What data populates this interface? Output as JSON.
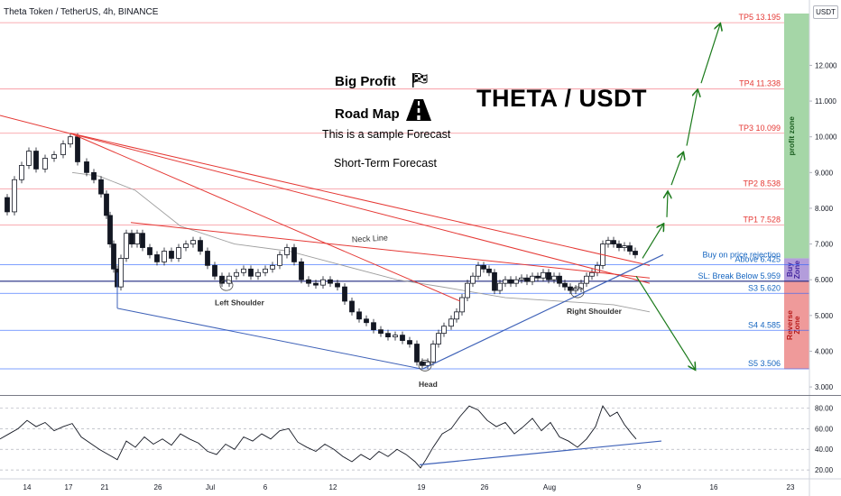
{
  "header": {
    "pair_title": "Theta Token / TetherUS, 4h, BINANCE",
    "quote_badge": "USDT"
  },
  "annotations": {
    "big_profit": "Big Profit",
    "road_map": "Road Map",
    "sample_forecast": "This is a sample Forecast",
    "short_term": "Short-Term Forecast",
    "main_title": "THETA / USDT",
    "neck_line": "Neck Line",
    "left_shoulder": "Left Shoulder",
    "head": "Head",
    "right_shoulder": "Right Shoulder"
  },
  "zones": {
    "profit": "profit zone",
    "buy": "Buy Zone",
    "reverse": "Reverse Zone"
  },
  "colors": {
    "tp_line": "#f23645",
    "support_line": "#2962ff",
    "profit_zone": "#a5d6a7",
    "buy_zone": "#b39ddb",
    "reverse_zone": "#ef9a9a",
    "arrow": "#1b7a1b",
    "trendline": "#e53935",
    "pattern_line": "#3f62b8"
  },
  "chart_data": {
    "type": "line",
    "x_axis_ticks": [
      "14",
      "17",
      "21",
      "26",
      "Jul",
      "6",
      "12",
      "19",
      "26",
      "Aug",
      "9",
      "16",
      "23"
    ],
    "price_axis_ticks": [
      3.0,
      4.0,
      5.0,
      6.0,
      7.0,
      8.0,
      9.0,
      10.0,
      11.0,
      12.0
    ],
    "price_axis_labels": [
      "3.000",
      "4.000",
      "5.000",
      "6.000",
      "7.000",
      "8.000",
      "9.000",
      "10.000",
      "11.000",
      "12.000"
    ],
    "price_range": [
      2.8,
      13.45
    ],
    "levels": [
      {
        "label": "TP5 13.195",
        "value": 13.195,
        "kind": "tp"
      },
      {
        "label": "TP4 11.338",
        "value": 11.338,
        "kind": "tp"
      },
      {
        "label": "TP3 10.099",
        "value": 10.099,
        "kind": "tp"
      },
      {
        "label": "TP2 8.538",
        "value": 8.538,
        "kind": "tp"
      },
      {
        "label": "TP1 7.528",
        "value": 7.528,
        "kind": "tp"
      },
      {
        "label": "Buy on price rejection",
        "value": 6.6,
        "kind": "note"
      },
      {
        "label": "Above 6.425",
        "value": 6.425,
        "kind": "buy"
      },
      {
        "label": "SL: Break Below 5.959",
        "value": 5.959,
        "kind": "sl"
      },
      {
        "label": "S3 5.620",
        "value": 5.62,
        "kind": "support"
      },
      {
        "label": "S4 4.585",
        "value": 4.585,
        "kind": "support"
      },
      {
        "label": "S5 3.506",
        "value": 3.506,
        "kind": "support"
      }
    ],
    "price_series": [
      [
        0,
        8.3
      ],
      [
        8,
        7.9
      ],
      [
        16,
        8.8
      ],
      [
        24,
        9.2
      ],
      [
        32,
        9.6
      ],
      [
        40,
        9.1
      ],
      [
        50,
        9.4
      ],
      [
        60,
        9.5
      ],
      [
        70,
        9.8
      ],
      [
        78,
        10.0
      ],
      [
        86,
        9.3
      ],
      [
        96,
        9.0
      ],
      [
        104,
        8.8
      ],
      [
        112,
        8.4
      ],
      [
        118,
        7.8
      ],
      [
        122,
        7.0
      ],
      [
        126,
        6.3
      ],
      [
        130,
        5.8
      ],
      [
        134,
        6.6
      ],
      [
        140,
        7.3
      ],
      [
        146,
        7.0
      ],
      [
        152,
        7.3
      ],
      [
        158,
        6.9
      ],
      [
        166,
        6.7
      ],
      [
        174,
        6.5
      ],
      [
        182,
        6.8
      ],
      [
        190,
        6.6
      ],
      [
        198,
        6.9
      ],
      [
        206,
        7.0
      ],
      [
        214,
        7.1
      ],
      [
        222,
        6.8
      ],
      [
        230,
        6.4
      ],
      [
        238,
        6.1
      ],
      [
        246,
        5.9
      ],
      [
        254,
        6.1
      ],
      [
        262,
        6.2
      ],
      [
        270,
        6.3
      ],
      [
        278,
        6.1
      ],
      [
        286,
        6.2
      ],
      [
        294,
        6.3
      ],
      [
        302,
        6.4
      ],
      [
        310,
        6.7
      ],
      [
        318,
        6.9
      ],
      [
        326,
        6.5
      ],
      [
        334,
        6.0
      ],
      [
        342,
        5.9
      ],
      [
        350,
        5.85
      ],
      [
        358,
        6.0
      ],
      [
        366,
        5.9
      ],
      [
        374,
        5.8
      ],
      [
        382,
        5.4
      ],
      [
        390,
        5.1
      ],
      [
        398,
        4.9
      ],
      [
        406,
        4.8
      ],
      [
        414,
        4.6
      ],
      [
        422,
        4.5
      ],
      [
        430,
        4.4
      ],
      [
        438,
        4.45
      ],
      [
        446,
        4.3
      ],
      [
        454,
        4.2
      ],
      [
        462,
        3.7
      ],
      [
        468,
        3.6
      ],
      [
        474,
        3.7
      ],
      [
        480,
        4.2
      ],
      [
        486,
        4.5
      ],
      [
        492,
        4.7
      ],
      [
        500,
        4.9
      ],
      [
        506,
        5.1
      ],
      [
        512,
        5.5
      ],
      [
        518,
        5.9
      ],
      [
        524,
        6.1
      ],
      [
        530,
        6.4
      ],
      [
        536,
        6.3
      ],
      [
        542,
        6.2
      ],
      [
        548,
        5.7
      ],
      [
        554,
        5.9
      ],
      [
        560,
        6.0
      ],
      [
        566,
        5.9
      ],
      [
        572,
        6.0
      ],
      [
        578,
        6.05
      ],
      [
        584,
        5.95
      ],
      [
        590,
        6.1
      ],
      [
        596,
        6.05
      ],
      [
        602,
        6.2
      ],
      [
        608,
        6.0
      ],
      [
        614,
        6.1
      ],
      [
        620,
        5.9
      ],
      [
        626,
        5.8
      ],
      [
        632,
        5.7
      ],
      [
        638,
        5.75
      ],
      [
        644,
        5.9
      ],
      [
        650,
        6.1
      ],
      [
        656,
        6.2
      ],
      [
        662,
        6.4
      ],
      [
        668,
        7.0
      ],
      [
        674,
        7.1
      ],
      [
        680,
        7.0
      ],
      [
        686,
        6.9
      ],
      [
        692,
        6.95
      ],
      [
        698,
        6.8
      ],
      [
        704,
        6.7
      ]
    ],
    "moving_average": [
      [
        80,
        9.0
      ],
      [
        110,
        8.9
      ],
      [
        150,
        8.5
      ],
      [
        200,
        7.5
      ],
      [
        260,
        7.0
      ],
      [
        320,
        6.8
      ],
      [
        380,
        6.4
      ],
      [
        440,
        6.0
      ],
      [
        490,
        5.8
      ],
      [
        560,
        5.5
      ],
      [
        620,
        5.4
      ],
      [
        680,
        5.3
      ],
      [
        720,
        5.1
      ]
    ],
    "pattern": {
      "neck_line": [
        [
          145,
          7.6
        ],
        [
          720,
          6.05
        ]
      ],
      "upper_trend_1": [
        [
          0,
          10.6
        ],
        [
          720,
          5.9
        ]
      ],
      "upper_trend_2": [
        [
          78,
          10.1
        ],
        [
          510,
          5.4
        ]
      ],
      "upper_trend_3": [
        [
          78,
          10.1
        ],
        [
          720,
          6.4
        ]
      ],
      "lower_trend": [
        [
          130,
          5.2
        ],
        [
          468,
          3.5
        ]
      ],
      "uptrend": [
        [
          468,
          3.5
        ],
        [
          735,
          6.7
        ]
      ]
    },
    "forecast_path": [
      [
        712,
        6.6
      ],
      [
        735,
        7.6
      ],
      [
        740,
        8.5
      ],
      [
        757,
        9.6
      ],
      [
        773,
        11.35
      ],
      [
        798,
        13.2
      ]
    ],
    "bearish_path": [
      [
        705,
        6.1
      ],
      [
        770,
        3.5
      ]
    ],
    "rsi": {
      "ticks": [
        20.0,
        40.0,
        60.0,
        80.0
      ],
      "tick_labels": [
        "20.00",
        "40.00",
        "60.00",
        "80.00"
      ],
      "range": [
        14,
        90
      ],
      "trend_line": [
        [
          465,
          25
        ],
        [
          733,
          48
        ]
      ],
      "series": [
        [
          0,
          50
        ],
        [
          10,
          55
        ],
        [
          20,
          60
        ],
        [
          30,
          68
        ],
        [
          40,
          62
        ],
        [
          50,
          66
        ],
        [
          60,
          58
        ],
        [
          70,
          62
        ],
        [
          80,
          65
        ],
        [
          90,
          52
        ],
        [
          100,
          46
        ],
        [
          110,
          40
        ],
        [
          120,
          35
        ],
        [
          130,
          30
        ],
        [
          140,
          48
        ],
        [
          150,
          42
        ],
        [
          160,
          52
        ],
        [
          170,
          45
        ],
        [
          180,
          50
        ],
        [
          190,
          44
        ],
        [
          200,
          55
        ],
        [
          210,
          50
        ],
        [
          220,
          46
        ],
        [
          230,
          38
        ],
        [
          240,
          35
        ],
        [
          250,
          45
        ],
        [
          260,
          40
        ],
        [
          270,
          52
        ],
        [
          280,
          48
        ],
        [
          290,
          55
        ],
        [
          300,
          50
        ],
        [
          310,
          58
        ],
        [
          320,
          60
        ],
        [
          330,
          47
        ],
        [
          340,
          42
        ],
        [
          350,
          38
        ],
        [
          360,
          45
        ],
        [
          370,
          40
        ],
        [
          380,
          33
        ],
        [
          390,
          28
        ],
        [
          400,
          35
        ],
        [
          410,
          30
        ],
        [
          420,
          38
        ],
        [
          430,
          33
        ],
        [
          440,
          40
        ],
        [
          450,
          35
        ],
        [
          460,
          28
        ],
        [
          466,
          22
        ],
        [
          472,
          30
        ],
        [
          480,
          42
        ],
        [
          490,
          55
        ],
        [
          500,
          60
        ],
        [
          510,
          72
        ],
        [
          520,
          82
        ],
        [
          530,
          78
        ],
        [
          540,
          68
        ],
        [
          550,
          62
        ],
        [
          560,
          66
        ],
        [
          570,
          55
        ],
        [
          580,
          62
        ],
        [
          590,
          70
        ],
        [
          600,
          58
        ],
        [
          610,
          66
        ],
        [
          620,
          52
        ],
        [
          630,
          48
        ],
        [
          640,
          42
        ],
        [
          650,
          50
        ],
        [
          660,
          62
        ],
        [
          668,
          82
        ],
        [
          676,
          72
        ],
        [
          684,
          76
        ],
        [
          692,
          64
        ],
        [
          700,
          55
        ],
        [
          705,
          50
        ]
      ]
    }
  }
}
